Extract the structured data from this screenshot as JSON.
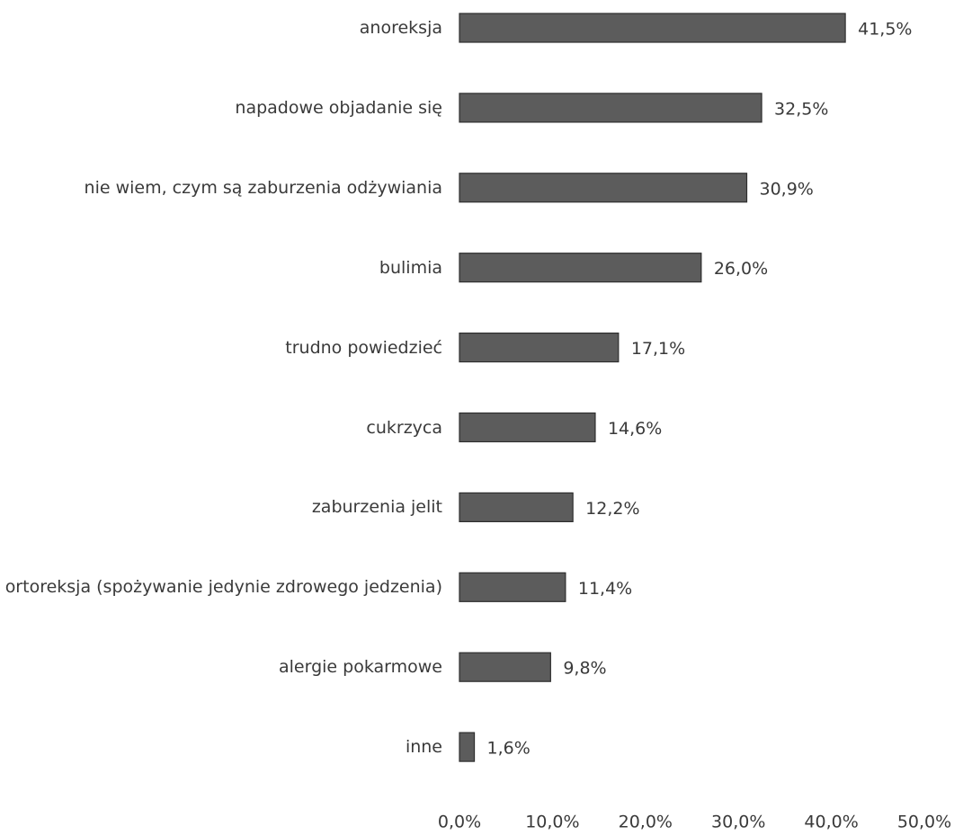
{
  "chart_data": {
    "type": "barh",
    "categories": [
      "anoreksja",
      "napadowe objadanie się",
      "nie wiem, czym są zaburzenia odżywiania",
      "bulimia",
      "trudno powiedzieć",
      "cukrzyca",
      "zaburzenia jelit",
      "ortoreksja (spożywanie jedynie zdrowego jedzenia)",
      "alergie pokarmowe",
      "inne"
    ],
    "values": [
      41.5,
      32.5,
      30.9,
      26.0,
      17.1,
      14.6,
      12.2,
      11.4,
      9.8,
      1.6
    ],
    "value_labels": [
      "41,5%",
      "32,5%",
      "30,9%",
      "26,0%",
      "17,1%",
      "14,6%",
      "12,2%",
      "11,4%",
      "9,8%",
      "1,6%"
    ],
    "color": "#5c5c5c",
    "xlim": [
      0,
      50
    ],
    "xticks": [
      {
        "value": 0,
        "label": "0,0%"
      },
      {
        "value": 10,
        "label": "10,0%"
      },
      {
        "value": 20,
        "label": "20,0%"
      },
      {
        "value": 30,
        "label": "30,0%"
      },
      {
        "value": 40,
        "label": "40,0%"
      },
      {
        "value": 50,
        "label": "50,0%"
      }
    ],
    "grid": false
  }
}
